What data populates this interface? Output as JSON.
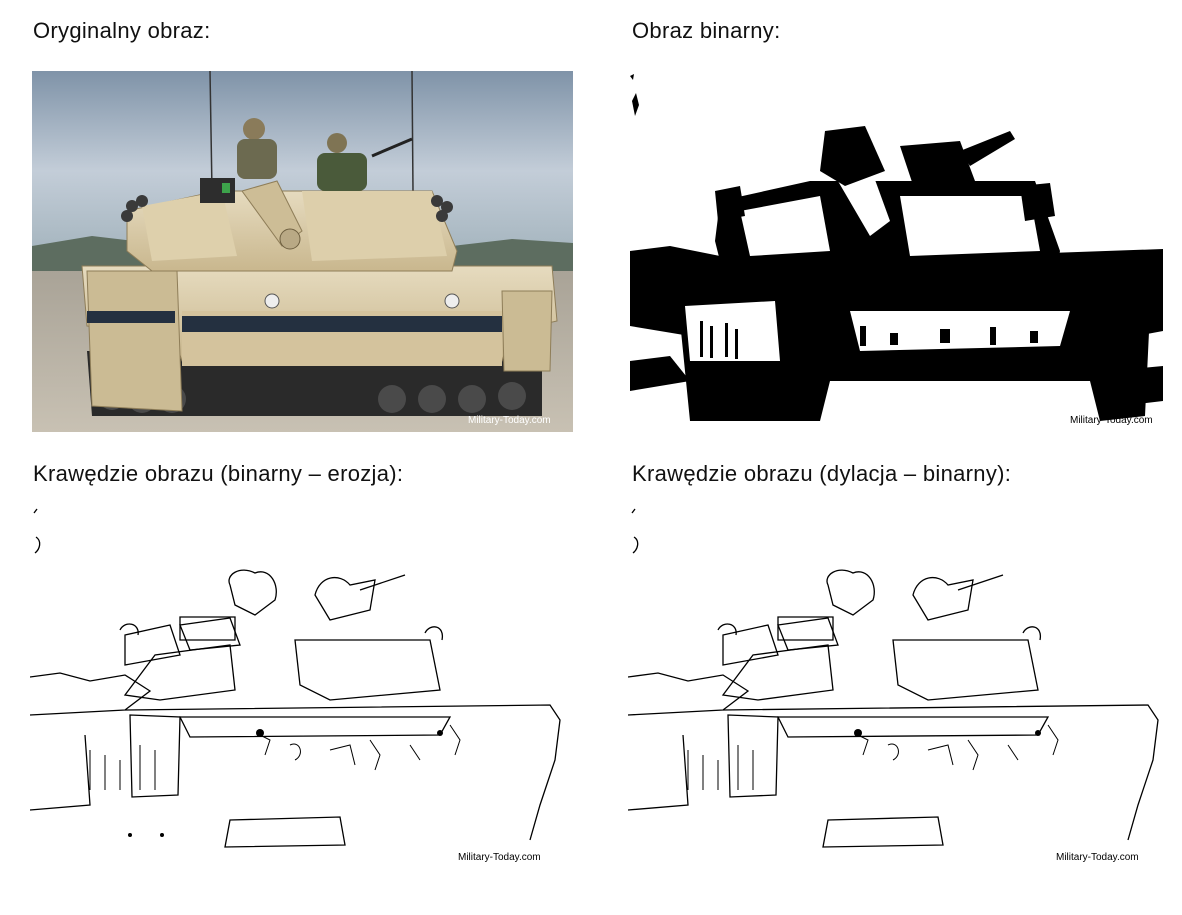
{
  "captions": {
    "original": "Oryginalny obraz:",
    "binary": "Obraz binarny:",
    "edges_erosion": "Krawędzie obrazu (binarny – erozja):",
    "edges_dilation": "Krawędzie obrazu (dylacja – binarny):"
  },
  "watermark": "Military-Today.com",
  "colors": {
    "sky": "#a9b8c9",
    "ground": "#b7b2a8",
    "tank_sand": "#d8c9a4",
    "tank_shadow": "#2b2b2b",
    "ink": "#000000",
    "paper": "#ffffff"
  }
}
